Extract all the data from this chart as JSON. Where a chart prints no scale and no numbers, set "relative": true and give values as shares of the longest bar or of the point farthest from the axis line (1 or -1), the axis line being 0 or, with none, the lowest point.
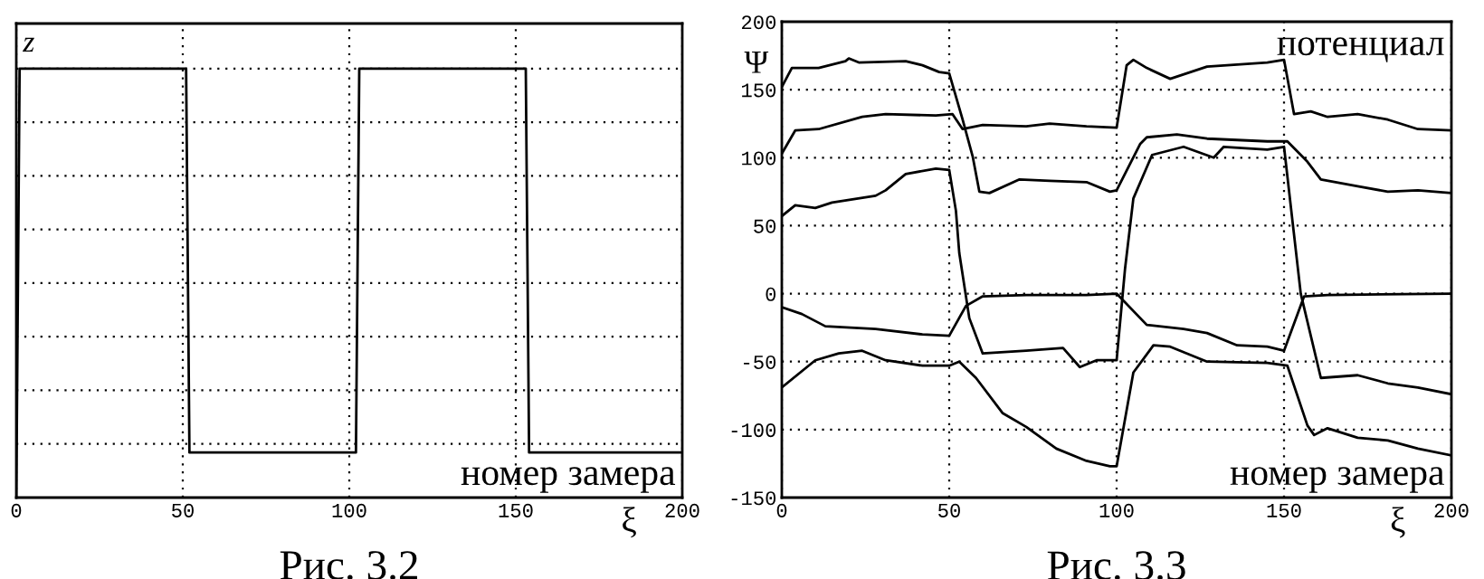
{
  "chart_data": [
    {
      "type": "line",
      "ylabel": "z",
      "xlabel": "ξ",
      "relative": true,
      "tick_labels": "x",
      "grid": true,
      "xlim": [
        0,
        200
      ],
      "xticks": [
        0,
        50,
        100,
        150,
        200
      ],
      "line_style": "solid",
      "marker": "none",
      "annotations": [
        "номер замера",
        "Рис. 3.2"
      ],
      "series": [
        {
          "color": "#000000",
          "x": [
            0,
            0.5,
            1,
            51,
            52,
            102,
            103,
            153,
            154,
            200
          ],
          "values": [
            0,
            0.5,
            1,
            1,
            0.105,
            0.105,
            1,
            1,
            0.105,
            0.105
          ]
        }
      ]
    },
    {
      "type": "line",
      "ylabel": "Ψ",
      "xlabel": "ξ",
      "grid": true,
      "xlim": [
        0,
        200
      ],
      "xticks": [
        0,
        50,
        100,
        150,
        200
      ],
      "ylim": [
        -150,
        200
      ],
      "yticks": [
        -150,
        -100,
        -50,
        0,
        50,
        100,
        150,
        200
      ],
      "line_style": "solid",
      "marker": "none",
      "annotations": [
        "потенциал",
        "номер замера",
        "Рис. 3.3"
      ],
      "series": [
        {
          "color": "#000000",
          "x": [
            0,
            3,
            11,
            19,
            20,
            23,
            37,
            42,
            47,
            50,
            54,
            57,
            59,
            62,
            71,
            80,
            91,
            98,
            100,
            107,
            109,
            118,
            127,
            136,
            145,
            151,
            157,
            161,
            172,
            181,
            190,
            200
          ],
          "values": [
            152,
            166,
            166,
            171,
            173,
            170,
            171,
            168,
            163,
            162,
            128,
            101,
            75,
            74,
            84,
            83,
            82,
            75,
            76,
            110,
            115,
            117,
            114,
            113,
            112,
            112,
            97,
            84,
            79,
            75,
            76,
            74
          ]
        },
        {
          "color": "#000000",
          "x": [
            0,
            4,
            11,
            24,
            31,
            46,
            51,
            54,
            60,
            73,
            80,
            91,
            100,
            103,
            105,
            109,
            116,
            127,
            145,
            150,
            153,
            158,
            163,
            172,
            181,
            190,
            200
          ],
          "values": [
            103,
            120,
            121,
            130,
            132,
            131,
            132,
            121,
            124,
            123,
            125,
            123,
            122,
            168,
            172,
            166,
            158,
            167,
            170,
            172,
            132,
            134,
            130,
            132,
            128,
            121,
            120
          ]
        },
        {
          "color": "#000000",
          "x": [
            0,
            4,
            10,
            15,
            28,
            31,
            37,
            46,
            50,
            52,
            53,
            56,
            60,
            73,
            84,
            89,
            94,
            100,
            102.5,
            105,
            110.6,
            120,
            129,
            132,
            145,
            150,
            155,
            161,
            172,
            181,
            190,
            200
          ],
          "values": [
            57,
            65,
            63,
            67,
            72,
            76,
            88,
            92,
            91,
            61,
            30,
            -18,
            -44,
            -42,
            -40,
            -54,
            -49,
            -49,
            18,
            70,
            102,
            108,
            100,
            108,
            106,
            108,
            0,
            -62,
            -60,
            -66,
            -69,
            -74
          ]
        },
        {
          "color": "#000000",
          "x": [
            0,
            6,
            13,
            28,
            42,
            50,
            55,
            60,
            73,
            91,
            100,
            109,
            120,
            127,
            136,
            145,
            150,
            156,
            163,
            200
          ],
          "values": [
            -10,
            -15,
            -24,
            -26,
            -30,
            -31,
            -9,
            -2,
            -1,
            -1,
            0,
            -23,
            -26,
            -29,
            -38,
            -39,
            -42,
            -2,
            -1,
            0
          ]
        },
        {
          "color": "#000000",
          "x": [
            0,
            10,
            17,
            24,
            31,
            42,
            50,
            53,
            58,
            66,
            73,
            82,
            91,
            98,
            100,
            105,
            111,
            116,
            127,
            145,
            151,
            157,
            159,
            163,
            172,
            181,
            190,
            200
          ],
          "values": [
            -69,
            -49,
            -44,
            -42,
            -49,
            -53,
            -53,
            -50,
            -62,
            -88,
            -98,
            -114,
            -123,
            -127,
            -127,
            -58,
            -38,
            -39,
            -50,
            -51,
            -53,
            -97,
            -104,
            -99,
            -106,
            -108,
            -114,
            -119
          ]
        }
      ]
    }
  ]
}
